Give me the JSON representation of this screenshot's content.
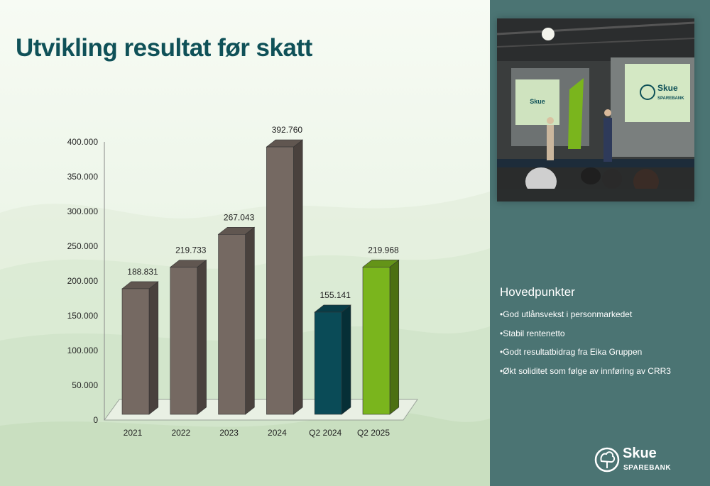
{
  "slide": {
    "title": "Utvikling resultat før skatt"
  },
  "chart_data": {
    "type": "bar",
    "categories": [
      "2021",
      "2022",
      "2023",
      "2024",
      "Q2 2024",
      "Q2 2025"
    ],
    "values": [
      188831,
      219733,
      267043,
      392760,
      155141,
      219968
    ],
    "value_labels": [
      "188.831",
      "219.733",
      "267.043",
      "392.760",
      "155.141",
      "219.968"
    ],
    "bar_colors": [
      "#756962",
      "#756962",
      "#756962",
      "#756962",
      "#0a4b57",
      "#7ab51d"
    ],
    "yticks": [
      0,
      50000,
      100000,
      150000,
      200000,
      250000,
      300000,
      350000,
      400000
    ],
    "ytick_labels": [
      "0",
      "50.000",
      "100.000",
      "150.000",
      "200.000",
      "250.000",
      "300.000",
      "350.000",
      "400.000"
    ],
    "ylim": [
      0,
      400000
    ],
    "grid": false,
    "legend": "none",
    "style": "3d-column"
  },
  "sidebar": {
    "heading": "Hovedpunkter",
    "points": [
      "•God utlånsvekst i personmarkedet",
      "•Stabil rentenetto",
      "•Godt resultatbidrag fra Eika Gruppen",
      "•Økt soliditet som følge av innføring av CRR3"
    ],
    "photo_screen_text": {
      "brand": "Skue",
      "sub": "SPAREBANK"
    },
    "logo": {
      "name": "Skue",
      "sub": "SPAREBANK"
    }
  },
  "colors": {
    "title": "#0f5158",
    "sidebar_bg": "#4b7473",
    "accent_green": "#7ab51d",
    "dark_teal": "#0a4b57"
  }
}
